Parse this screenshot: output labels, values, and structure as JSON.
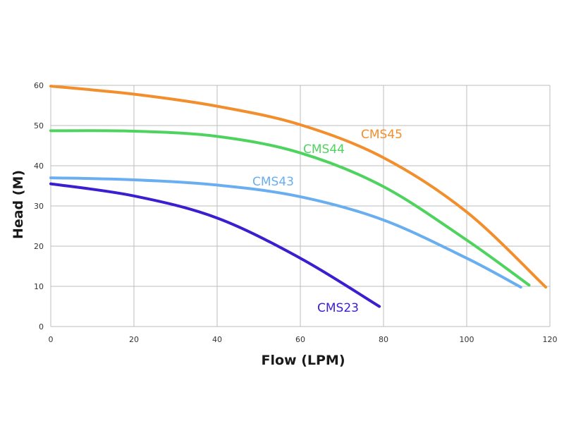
{
  "chart_data": {
    "type": "line",
    "title": "",
    "xlabel": "Flow (LPM)",
    "ylabel": "Head (M)",
    "xlim": [
      0,
      120
    ],
    "ylim": [
      0,
      60
    ],
    "xticks": [
      0,
      20,
      40,
      60,
      80,
      100,
      120
    ],
    "yticks": [
      0,
      10,
      20,
      30,
      40,
      50,
      60
    ],
    "grid": true,
    "legend": "none",
    "series": [
      {
        "name": "CMS45",
        "color": "#f28e2b",
        "x": [
          0,
          20,
          40,
          60,
          80,
          100,
          119
        ],
        "y": [
          59.8,
          57.8,
          54.8,
          50.2,
          42.0,
          28.5,
          9.8
        ]
      },
      {
        "name": "CMS44",
        "color": "#4fd35f",
        "x": [
          0,
          20,
          40,
          60,
          80,
          100,
          115
        ],
        "y": [
          48.7,
          48.6,
          47.3,
          43.2,
          34.8,
          21.5,
          10.3
        ]
      },
      {
        "name": "CMS43",
        "color": "#69aef0",
        "x": [
          0,
          20,
          40,
          60,
          80,
          100,
          113
        ],
        "y": [
          37.0,
          36.5,
          35.2,
          32.3,
          26.5,
          17.0,
          9.8
        ]
      },
      {
        "name": "CMS23",
        "color": "#3b1ed0",
        "x": [
          0,
          20,
          40,
          60,
          79
        ],
        "y": [
          35.5,
          32.5,
          27.0,
          17.0,
          5.0
        ]
      }
    ]
  }
}
